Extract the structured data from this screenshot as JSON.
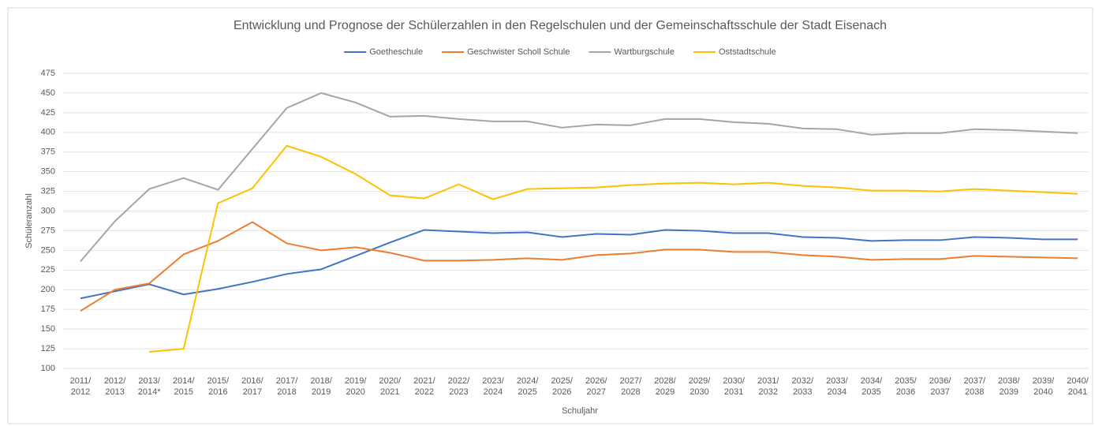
{
  "chart_data": {
    "type": "line",
    "title": "Entwicklung und Prognose der Schülerzahlen in den Regelschulen und der Gemeinschaftsschule der Stadt Eisenach",
    "x_label": "Schuljahr",
    "y_label": "Schüleranzahl",
    "categories": [
      "2011/\n2012",
      "2012/\n2013",
      "2013/\n2014*",
      "2014/\n2015",
      "2015/\n2016",
      "2016/\n2017",
      "2017/\n2018",
      "2018/\n2019",
      "2019/\n2020",
      "2020/\n2021",
      "2021/\n2022",
      "2022/\n2023",
      "2023/\n2024",
      "2024/\n2025",
      "2025/\n2026",
      "2026/\n2027",
      "2027/\n2028",
      "2028/\n2029",
      "2029/\n2030",
      "2030/\n2031",
      "2031/\n2032",
      "2032/\n2033",
      "2033/\n2034",
      "2034/\n2035",
      "2035/\n2036",
      "2036/\n2037",
      "2037/\n2038",
      "2038/\n2039",
      "2039/\n2040",
      "2040/\n2041"
    ],
    "series": [
      {
        "name": "Goetheschule",
        "color": "#4472c4",
        "values": [
          189,
          198,
          207,
          194,
          201,
          210,
          220,
          226,
          243,
          260,
          276,
          274,
          272,
          273,
          267,
          271,
          270,
          276,
          275,
          272,
          272,
          267,
          266,
          262,
          263,
          263,
          267,
          266,
          264,
          264
        ]
      },
      {
        "name": "Geschwister Scholl Schule",
        "color": "#ed7d31",
        "values": [
          173,
          200,
          208,
          245,
          262,
          286,
          259,
          250,
          254,
          247,
          237,
          237,
          238,
          240,
          238,
          244,
          246,
          251,
          251,
          248,
          248,
          244,
          242,
          238,
          239,
          239,
          243,
          242,
          241,
          240
        ]
      },
      {
        "name": "Wartburgschule",
        "color": "#a5a5a5",
        "values": [
          236,
          287,
          328,
          342,
          327,
          379,
          431,
          450,
          438,
          420,
          421,
          417,
          414,
          414,
          406,
          410,
          409,
          417,
          417,
          413,
          411,
          405,
          404,
          397,
          399,
          399,
          404,
          403,
          401,
          399
        ]
      },
      {
        "name": "Oststadtschule",
        "color": "#ffc000",
        "values": [
          null,
          null,
          121,
          125,
          310,
          329,
          383,
          369,
          347,
          320,
          316,
          334,
          315,
          328,
          329,
          330,
          333,
          335,
          336,
          334,
          336,
          332,
          330,
          326,
          326,
          325,
          328,
          326,
          324,
          322
        ]
      }
    ],
    "ylim": [
      100,
      475
    ],
    "yticks": [
      100,
      125,
      150,
      175,
      200,
      225,
      250,
      275,
      300,
      325,
      350,
      375,
      400,
      425,
      450,
      475
    ],
    "grid": true,
    "legend": "top"
  }
}
